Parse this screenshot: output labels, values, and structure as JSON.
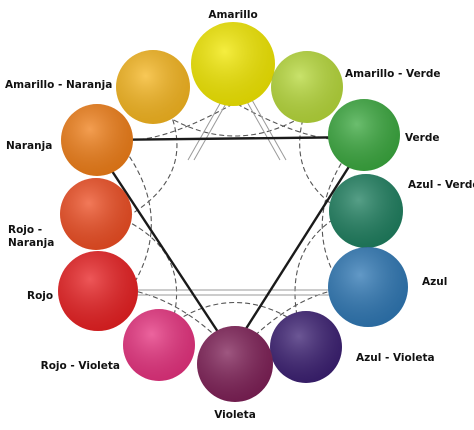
{
  "colors": [
    {
      "key": "amarillo",
      "label": "Amarillo",
      "hex": "#f2e800"
    },
    {
      "key": "amarillo_verde",
      "label": "Amarillo - Verde",
      "hex": "#b7d93a"
    },
    {
      "key": "verde",
      "label": "Verde",
      "hex": "#3aa83e"
    },
    {
      "key": "azul_verde",
      "label": "Azul - Verde",
      "hex": "#1e7f5f"
    },
    {
      "key": "azul",
      "label": "Azul",
      "hex": "#2e77b4"
    },
    {
      "key": "azul_violeta",
      "label": "Azul - Violeta",
      "hex": "#3b1f72"
    },
    {
      "key": "violeta",
      "label": "Violeta",
      "hex": "#7e1f56"
    },
    {
      "key": "rojo_violeta",
      "label": "Rojo - Violeta",
      "hex": "#e6317e"
    },
    {
      "key": "rojo",
      "label": "Rojo",
      "hex": "#e81f21"
    },
    {
      "key": "rojo_naranja",
      "label": "Rojo -\nNaranja",
      "hex": "#ee4d22"
    },
    {
      "key": "naranja",
      "label": "Naranja",
      "hex": "#f07e17"
    },
    {
      "key": "amarillo_naranja",
      "label": "Amarillo - Naranja",
      "hex": "#f6b61f"
    }
  ]
}
